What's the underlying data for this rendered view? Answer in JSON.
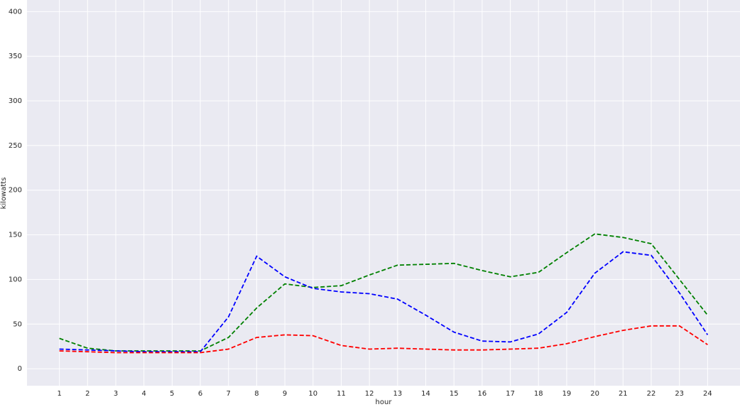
{
  "chart_data": {
    "type": "line",
    "x_label": "hour",
    "y_label": "kilowatts",
    "x": [
      1,
      2,
      3,
      4,
      5,
      6,
      7,
      8,
      9,
      10,
      11,
      12,
      13,
      14,
      15,
      16,
      17,
      18,
      19,
      20,
      21,
      22,
      23,
      24
    ],
    "series": [
      {
        "color": "#008000",
        "values": [
          34,
          23,
          20,
          20,
          20,
          20,
          35,
          68,
          95,
          91,
          93,
          105,
          116,
          117,
          118,
          110,
          103,
          108,
          130,
          151,
          147,
          140,
          100,
          60
        ]
      },
      {
        "color": "#0000ff",
        "values": [
          22,
          21,
          20,
          19,
          19,
          19,
          58,
          126,
          103,
          90,
          86,
          84,
          78,
          60,
          41,
          31,
          30,
          39,
          63,
          107,
          131,
          127,
          85,
          38
        ]
      },
      {
        "color": "#ff0000",
        "values": [
          20,
          19,
          18,
          18,
          18,
          18,
          22,
          35,
          38,
          37,
          26,
          22,
          23,
          22,
          21,
          21,
          22,
          23,
          28,
          36,
          43,
          48,
          48,
          27
        ]
      }
    ],
    "xlim": [
      -0.15,
      25.15
    ],
    "ylim": [
      -19,
      413
    ],
    "xticks": [
      1,
      2,
      3,
      4,
      5,
      6,
      7,
      8,
      9,
      10,
      11,
      12,
      13,
      14,
      15,
      16,
      17,
      18,
      19,
      20,
      21,
      22,
      23,
      24
    ],
    "yticks": [
      0,
      50,
      100,
      150,
      200,
      250,
      300,
      350,
      400
    ],
    "grid": true,
    "line_style": "dashed"
  }
}
